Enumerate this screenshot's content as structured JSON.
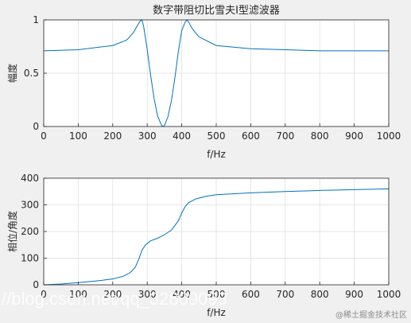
{
  "chart_data": [
    {
      "type": "line",
      "title": "数字带阻切比雪夫I型滤波器",
      "xlabel": "f/Hz",
      "ylabel": "幅度",
      "xlim": [
        0,
        1000
      ],
      "ylim": [
        0,
        1
      ],
      "xticks": [
        "0",
        "100",
        "200",
        "300",
        "400",
        "500",
        "600",
        "700",
        "800",
        "900",
        "1000"
      ],
      "yticks": [
        "0",
        "0.5",
        "1"
      ],
      "grid": true,
      "color": "#0072bd",
      "x": [
        0,
        100,
        200,
        240,
        260,
        270,
        280,
        285,
        290,
        300,
        310,
        320,
        330,
        340,
        345,
        350,
        360,
        370,
        380,
        390,
        400,
        410,
        415,
        420,
        430,
        450,
        500,
        600,
        700,
        800,
        900,
        1000
      ],
      "y": [
        0.71,
        0.72,
        0.76,
        0.81,
        0.88,
        0.94,
        0.99,
        1.0,
        0.93,
        0.72,
        0.48,
        0.26,
        0.1,
        0.02,
        0.0,
        0.01,
        0.09,
        0.24,
        0.45,
        0.7,
        0.9,
        0.98,
        1.0,
        0.98,
        0.92,
        0.84,
        0.76,
        0.73,
        0.72,
        0.71,
        0.71,
        0.71
      ]
    },
    {
      "type": "line",
      "title": "",
      "xlabel": "f/Hz",
      "ylabel": "相位/角度",
      "xlim": [
        0,
        1000
      ],
      "ylim": [
        0,
        400
      ],
      "xticks": [
        "0",
        "100",
        "200",
        "300",
        "400",
        "500",
        "600",
        "700",
        "800",
        "900",
        "1000"
      ],
      "yticks": [
        "0",
        "100",
        "200",
        "300",
        "400"
      ],
      "grid": true,
      "color": "#0072bd",
      "x": [
        0,
        50,
        100,
        150,
        200,
        230,
        250,
        265,
        275,
        285,
        295,
        310,
        330,
        350,
        370,
        390,
        400,
        410,
        420,
        440,
        470,
        500,
        600,
        700,
        800,
        900,
        1000
      ],
      "y": [
        0,
        3,
        8,
        14,
        22,
        32,
        45,
        65,
        95,
        130,
        150,
        165,
        175,
        188,
        205,
        240,
        270,
        293,
        308,
        322,
        332,
        338,
        345,
        350,
        354,
        357,
        360
      ]
    }
  ],
  "watermark": {
    "url_text": "//blog.csdn.net/qq_32809093",
    "site_text": "@稀土掘金技术社区"
  }
}
